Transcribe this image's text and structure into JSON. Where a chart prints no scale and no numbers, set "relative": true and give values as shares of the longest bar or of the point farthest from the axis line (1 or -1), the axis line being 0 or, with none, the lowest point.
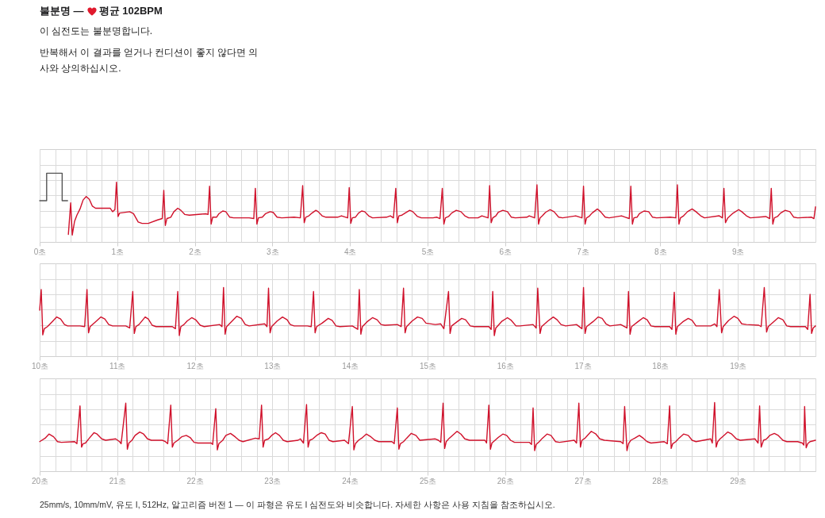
{
  "chart_data": [
    {
      "type": "line",
      "title": "불분명 — 평균 102BPM",
      "subtitle": "이 심전도는 불분명합니다.",
      "annotations": [
        "반복해서 이 결과를 얻거나 컨디션이 좋지 않다면 의사와 상의하십시오."
      ],
      "relative": true,
      "grid": true,
      "xlim": [
        0,
        10
      ],
      "xticks": [
        {
          "value": 0,
          "label": "0초"
        },
        {
          "value": 0.2,
          "label": null
        },
        {
          "value": 0.4,
          "label": null
        },
        {
          "value": 0.6,
          "label": null
        },
        {
          "value": 0.8,
          "label": null
        },
        {
          "value": 1,
          "label": "1초"
        },
        {
          "value": 1.2,
          "label": null
        },
        {
          "value": 1.4,
          "label": null
        },
        {
          "value": 1.6,
          "label": null
        },
        {
          "value": 1.8,
          "label": null
        },
        {
          "value": 2,
          "label": "2초"
        },
        {
          "value": 2.2,
          "label": null
        },
        {
          "value": 2.4,
          "label": null
        },
        {
          "value": 2.6,
          "label": null
        },
        {
          "value": 2.8,
          "label": null
        },
        {
          "value": 3,
          "label": "3초"
        },
        {
          "value": 3.2,
          "label": null
        },
        {
          "value": 3.4,
          "label": null
        },
        {
          "value": 3.6,
          "label": null
        },
        {
          "value": 3.8,
          "label": null
        },
        {
          "value": 4,
          "label": "4초"
        },
        {
          "value": 4.2,
          "label": null
        },
        {
          "value": 4.4,
          "label": null
        },
        {
          "value": 4.6,
          "label": null
        },
        {
          "value": 4.8,
          "label": null
        },
        {
          "value": 5,
          "label": "5초"
        },
        {
          "value": 5.2,
          "label": null
        },
        {
          "value": 5.4,
          "label": null
        },
        {
          "value": 5.6,
          "label": null
        },
        {
          "value": 5.8,
          "label": null
        },
        {
          "value": 6,
          "label": "6초"
        },
        {
          "value": 6.2,
          "label": null
        },
        {
          "value": 6.4,
          "label": null
        },
        {
          "value": 6.6,
          "label": null
        },
        {
          "value": 6.8,
          "label": null
        },
        {
          "value": 7,
          "label": "7초"
        },
        {
          "value": 7.2,
          "label": null
        },
        {
          "value": 7.4,
          "label": null
        },
        {
          "value": 7.6,
          "label": null
        },
        {
          "value": 7.8,
          "label": null
        },
        {
          "value": 8,
          "label": "8초"
        },
        {
          "value": 8.2,
          "label": null
        },
        {
          "value": 8.4,
          "label": null
        },
        {
          "value": 8.6,
          "label": null
        },
        {
          "value": 8.8,
          "label": null
        },
        {
          "value": 9,
          "label": "9초"
        },
        {
          "value": 9.2,
          "label": null
        },
        {
          "value": 9.4,
          "label": null
        },
        {
          "value": 9.6,
          "label": null
        },
        {
          "value": 9.8,
          "label": null
        },
        {
          "value": 10,
          "label": null
        }
      ],
      "series": [
        {
          "color": "#555555",
          "x": [
            0,
            0.09,
            0.09,
            0.29,
            0.29,
            0.36
          ],
          "values": [
            0.6,
            0.6,
            1,
            1,
            0.6,
            0.6
          ]
        },
        {
          "color": "#d0112b",
          "x": [
            0.37,
            0.4,
            0.42,
            0.45,
            0.48,
            0.52,
            0.56,
            0.6,
            0.64,
            0.68,
            0.72,
            0.91,
            0.94,
            0.97,
            0.99,
            1.01,
            1.03,
            1.16,
            1.21,
            1.27,
            1.32,
            1.4,
            1.52,
            1.58,
            1.6,
            1.62,
            1.64,
            1.69,
            1.73,
            1.78,
            1.82,
            1.87,
            1.93,
            2.14,
            2.17,
            2.19,
            2.21,
            2.23,
            2.28,
            2.31,
            2.36,
            2.4,
            2.45,
            2.5,
            2.66,
            2.7,
            2.76,
            2.78,
            2.8,
            2.82,
            2.87,
            2.91,
            2.97,
            3.01,
            3.06,
            3.12,
            3.28,
            3.36,
            3.39,
            3.41,
            3.43,
            3.47,
            3.51,
            3.56,
            3.59,
            3.64,
            3.69,
            3.84,
            3.89,
            3.97,
            3.99,
            4.01,
            4.03,
            4.07,
            4.11,
            4.15,
            4.19,
            4.24,
            4.29,
            4.47,
            4.52,
            4.56,
            4.59,
            4.61,
            4.63,
            4.67,
            4.71,
            4.77,
            4.81,
            4.87,
            4.92,
            5.07,
            5.12,
            5.16,
            5.19,
            5.21,
            5.23,
            5.27,
            5.31,
            5.37,
            5.43,
            5.48,
            5.53,
            5.65,
            5.7,
            5.78,
            5.8,
            5.82,
            5.84,
            5.88,
            5.91,
            5.97,
            6.03,
            6.08,
            6.13,
            6.28,
            6.31,
            6.38,
            6.41,
            6.43,
            6.45,
            6.48,
            6.52,
            6.58,
            6.63,
            6.69,
            6.74,
            6.91,
            6.99,
            7.01,
            7.03,
            7.05,
            7.08,
            7.12,
            7.19,
            7.23,
            7.29,
            7.34,
            7.5,
            7.55,
            7.6,
            7.62,
            7.64,
            7.66,
            7.7,
            7.73,
            7.79,
            7.85,
            7.9,
            7.95,
            8.13,
            8.2,
            8.22,
            8.24,
            8.26,
            8.3,
            8.35,
            8.41,
            8.46,
            8.52,
            8.57,
            8.76,
            8.8,
            8.82,
            8.84,
            8.87,
            8.9,
            8.94,
            9.01,
            9.05,
            9.11,
            9.16,
            9.36,
            9.41,
            9.43,
            9.45,
            9.47,
            9.51,
            9.55,
            9.61,
            9.67,
            9.72,
            9.77,
            9.95,
            9.98,
            10
          ],
          "values": [
            0.11,
            0.57,
            0.1,
            0.3,
            0.39,
            0.48,
            0.61,
            0.66,
            0.62,
            0.52,
            0.49,
            0.49,
            0.44,
            0.47,
            0.87,
            0.37,
            0.42,
            0.44,
            0.41,
            0.29,
            0.27,
            0.27,
            0.32,
            0.34,
            0.75,
            0.24,
            0.34,
            0.36,
            0.44,
            0.49,
            0.46,
            0.4,
            0.39,
            0.41,
            0.4,
            0.81,
            0.26,
            0.36,
            0.36,
            0.41,
            0.45,
            0.44,
            0.36,
            0.35,
            0.35,
            0.35,
            0.34,
            0.78,
            0.26,
            0.35,
            0.36,
            0.41,
            0.44,
            0.43,
            0.36,
            0.35,
            0.36,
            0.35,
            0.82,
            0.28,
            0.36,
            0.38,
            0.42,
            0.46,
            0.44,
            0.38,
            0.36,
            0.36,
            0.38,
            0.35,
            0.79,
            0.27,
            0.35,
            0.36,
            0.42,
            0.45,
            0.44,
            0.38,
            0.35,
            0.36,
            0.38,
            0.35,
            0.78,
            0.28,
            0.38,
            0.39,
            0.42,
            0.46,
            0.44,
            0.37,
            0.35,
            0.35,
            0.36,
            0.34,
            0.78,
            0.26,
            0.35,
            0.37,
            0.42,
            0.46,
            0.44,
            0.38,
            0.35,
            0.35,
            0.38,
            0.35,
            0.82,
            0.28,
            0.35,
            0.38,
            0.43,
            0.46,
            0.44,
            0.36,
            0.35,
            0.36,
            0.38,
            0.35,
            0.83,
            0.26,
            0.35,
            0.38,
            0.43,
            0.47,
            0.44,
            0.36,
            0.35,
            0.38,
            0.35,
            0.81,
            0.26,
            0.35,
            0.37,
            0.42,
            0.48,
            0.44,
            0.36,
            0.35,
            0.38,
            0.36,
            0.34,
            0.81,
            0.26,
            0.35,
            0.36,
            0.41,
            0.45,
            0.44,
            0.36,
            0.35,
            0.36,
            0.35,
            0.83,
            0.26,
            0.35,
            0.38,
            0.44,
            0.48,
            0.44,
            0.38,
            0.35,
            0.38,
            0.35,
            0.78,
            0.28,
            0.35,
            0.38,
            0.42,
            0.47,
            0.44,
            0.38,
            0.35,
            0.37,
            0.34,
            0.78,
            0.26,
            0.35,
            0.37,
            0.42,
            0.46,
            0.44,
            0.36,
            0.35,
            0.36,
            0.34,
            0.51
          ]
        }
      ]
    },
    {
      "type": "line",
      "relative": true,
      "grid": true,
      "xlim": [
        10,
        20
      ],
      "xticks": [
        {
          "value": 10,
          "label": "10초"
        },
        {
          "value": 10.2,
          "label": null
        },
        {
          "value": 10.4,
          "label": null
        },
        {
          "value": 10.6,
          "label": null
        },
        {
          "value": 10.8,
          "label": null
        },
        {
          "value": 11,
          "label": "11초"
        },
        {
          "value": 11.2,
          "label": null
        },
        {
          "value": 11.4,
          "label": null
        },
        {
          "value": 11.6,
          "label": null
        },
        {
          "value": 11.8,
          "label": null
        },
        {
          "value": 12,
          "label": "12초"
        },
        {
          "value": 12.2,
          "label": null
        },
        {
          "value": 12.4,
          "label": null
        },
        {
          "value": 12.6,
          "label": null
        },
        {
          "value": 12.8,
          "label": null
        },
        {
          "value": 13,
          "label": "13초"
        },
        {
          "value": 13.2,
          "label": null
        },
        {
          "value": 13.4,
          "label": null
        },
        {
          "value": 13.6,
          "label": null
        },
        {
          "value": 13.8,
          "label": null
        },
        {
          "value": 14,
          "label": "14초"
        },
        {
          "value": 14.2,
          "label": null
        },
        {
          "value": 14.4,
          "label": null
        },
        {
          "value": 14.6,
          "label": null
        },
        {
          "value": 14.8,
          "label": null
        },
        {
          "value": 15,
          "label": "15초"
        },
        {
          "value": 15.2,
          "label": null
        },
        {
          "value": 15.4,
          "label": null
        },
        {
          "value": 15.6,
          "label": null
        },
        {
          "value": 15.8,
          "label": null
        },
        {
          "value": 16,
          "label": "16초"
        },
        {
          "value": 16.2,
          "label": null
        },
        {
          "value": 16.4,
          "label": null
        },
        {
          "value": 16.6,
          "label": null
        },
        {
          "value": 16.8,
          "label": null
        },
        {
          "value": 17,
          "label": "17초"
        },
        {
          "value": 17.2,
          "label": null
        },
        {
          "value": 17.4,
          "label": null
        },
        {
          "value": 17.6,
          "label": null
        },
        {
          "value": 17.8,
          "label": null
        },
        {
          "value": 18,
          "label": "18초"
        },
        {
          "value": 18.2,
          "label": null
        },
        {
          "value": 18.4,
          "label": null
        },
        {
          "value": 18.6,
          "label": null
        },
        {
          "value": 18.8,
          "label": null
        },
        {
          "value": 19,
          "label": "19초"
        },
        {
          "value": 19.2,
          "label": null
        },
        {
          "value": 19.4,
          "label": null
        },
        {
          "value": 19.6,
          "label": null
        },
        {
          "value": 19.8,
          "label": null
        },
        {
          "value": 20,
          "label": null
        }
      ],
      "series": [
        {
          "color": "#d0112b",
          "x": [
            10,
            10.02,
            10.04,
            10.06,
            10.1,
            10.16,
            10.22,
            10.27,
            10.32,
            10.36,
            10.52,
            10.58,
            10.61,
            10.63,
            10.65,
            10.72,
            10.79,
            10.84,
            10.89,
            10.94,
            11.11,
            11.16,
            11.2,
            11.22,
            11.24,
            11.28,
            11.36,
            11.4,
            11.45,
            11.5,
            11.71,
            11.75,
            11.78,
            11.8,
            11.82,
            11.86,
            11.9,
            11.96,
            12.01,
            12.07,
            12.12,
            12.32,
            12.35,
            12.37,
            12.39,
            12.41,
            12.48,
            12.54,
            12.6,
            12.65,
            12.7,
            12.9,
            12.93,
            12.95,
            12.97,
            12.99,
            13.06,
            13.13,
            13.19,
            13.23,
            13.28,
            13.45,
            13.5,
            13.53,
            13.55,
            13.57,
            13.64,
            13.72,
            13.77,
            13.82,
            13.87,
            14.03,
            14.1,
            14.12,
            14.14,
            14.16,
            14.22,
            14.29,
            14.35,
            14.4,
            14.45,
            14.61,
            14.66,
            14.69,
            14.71,
            14.73,
            14.8,
            14.87,
            14.93,
            14.98,
            15.1,
            15.17,
            15.21,
            15.27,
            15.29,
            15.31,
            15.38,
            15.44,
            15.49,
            15.55,
            15.6,
            15.79,
            15.82,
            15.84,
            15.86,
            15.88,
            15.96,
            16.03,
            16.08,
            16.14,
            16.19,
            16.36,
            16.4,
            16.42,
            16.45,
            16.47,
            16.55,
            16.62,
            16.67,
            16.72,
            16.78,
            16.92,
            16.99,
            17.01,
            17.03,
            17.05,
            17.13,
            17.2,
            17.25,
            17.3,
            17.35,
            17.49,
            17.57,
            17.59,
            17.61,
            17.63,
            17.71,
            17.78,
            17.83,
            17.88,
            17.93,
            18.12,
            18.15,
            18.18,
            18.2,
            18.22,
            18.29,
            18.36,
            18.41,
            18.46,
            18.51,
            18.65,
            18.7,
            18.73,
            18.76,
            18.79,
            18.81,
            18.88,
            18.95,
            19.0,
            19.05,
            19.11,
            19.27,
            19.3,
            19.34,
            19.37,
            19.39,
            19.46,
            19.52,
            19.58,
            19.63,
            19.68,
            19.87,
            19.9,
            19.93,
            19.95,
            19.97,
            20
          ],
          "values": [
            0.67,
            0.97,
            0.31,
            0.4,
            0.43,
            0.5,
            0.57,
            0.54,
            0.46,
            0.44,
            0.44,
            0.43,
            0.97,
            0.34,
            0.43,
            0.5,
            0.57,
            0.54,
            0.46,
            0.44,
            0.44,
            0.41,
            0.94,
            0.33,
            0.43,
            0.46,
            0.57,
            0.54,
            0.45,
            0.43,
            0.43,
            0.4,
            0.94,
            0.3,
            0.43,
            0.46,
            0.51,
            0.56,
            0.53,
            0.45,
            0.43,
            0.46,
            0.43,
            1,
            0.32,
            0.43,
            0.51,
            0.58,
            0.55,
            0.46,
            0.44,
            0.47,
            0.43,
            0.99,
            0.34,
            0.43,
            0.51,
            0.57,
            0.53,
            0.46,
            0.44,
            0.44,
            0.43,
            0.94,
            0.34,
            0.43,
            0.48,
            0.55,
            0.52,
            0.44,
            0.43,
            0.44,
            0.39,
            0.97,
            0.32,
            0.43,
            0.5,
            0.56,
            0.53,
            0.46,
            0.45,
            0.46,
            0.43,
            0.99,
            0.34,
            0.43,
            0.51,
            0.57,
            0.55,
            0.48,
            0.46,
            0.47,
            0.4,
            0.94,
            0.33,
            0.44,
            0.5,
            0.55,
            0.53,
            0.44,
            0.43,
            0.43,
            0.39,
            0.94,
            0.3,
            0.41,
            0.51,
            0.56,
            0.52,
            0.44,
            0.44,
            0.46,
            0.41,
            0.99,
            0.33,
            0.43,
            0.51,
            0.57,
            0.53,
            0.46,
            0.44,
            0.46,
            0.4,
            1,
            0.33,
            0.43,
            0.5,
            0.57,
            0.55,
            0.47,
            0.44,
            0.46,
            0.41,
            0.94,
            0.32,
            0.43,
            0.5,
            0.56,
            0.53,
            0.44,
            0.43,
            0.43,
            0.39,
            0.93,
            0.32,
            0.43,
            0.5,
            0.55,
            0.52,
            0.44,
            0.44,
            0.44,
            0.47,
            0.43,
            0.97,
            0.34,
            0.43,
            0.52,
            0.58,
            0.55,
            0.47,
            0.46,
            0.45,
            0.43,
            1,
            0.35,
            0.43,
            0.5,
            0.56,
            0.53,
            0.44,
            0.43,
            0.43,
            0.39,
            0.9,
            0.33,
            0.41,
            0.44
          ]
        }
      ]
    },
    {
      "type": "line",
      "relative": true,
      "grid": true,
      "xlim": [
        20,
        30
      ],
      "annotations": [
        "25mm/s, 10mm/mV, 유도 I, 512Hz, 알고리즘 버전 1 — 이 파형은 유도 I 심전도와 비슷합니다. 자세한 사항은 사용 지침을 참조하십시오."
      ],
      "xticks": [
        {
          "value": 20,
          "label": "20초"
        },
        {
          "value": 20.2,
          "label": null
        },
        {
          "value": 20.4,
          "label": null
        },
        {
          "value": 20.6,
          "label": null
        },
        {
          "value": 20.8,
          "label": null
        },
        {
          "value": 21,
          "label": "21초"
        },
        {
          "value": 21.2,
          "label": null
        },
        {
          "value": 21.4,
          "label": null
        },
        {
          "value": 21.6,
          "label": null
        },
        {
          "value": 21.8,
          "label": null
        },
        {
          "value": 22,
          "label": "22초"
        },
        {
          "value": 22.2,
          "label": null
        },
        {
          "value": 22.4,
          "label": null
        },
        {
          "value": 22.6,
          "label": null
        },
        {
          "value": 22.8,
          "label": null
        },
        {
          "value": 23,
          "label": "23초"
        },
        {
          "value": 23.2,
          "label": null
        },
        {
          "value": 23.4,
          "label": null
        },
        {
          "value": 23.6,
          "label": null
        },
        {
          "value": 23.8,
          "label": null
        },
        {
          "value": 24,
          "label": "24초"
        },
        {
          "value": 24.2,
          "label": null
        },
        {
          "value": 24.4,
          "label": null
        },
        {
          "value": 24.6,
          "label": null
        },
        {
          "value": 24.8,
          "label": null
        },
        {
          "value": 25,
          "label": "25초"
        },
        {
          "value": 25.2,
          "label": null
        },
        {
          "value": 25.4,
          "label": null
        },
        {
          "value": 25.6,
          "label": null
        },
        {
          "value": 25.8,
          "label": null
        },
        {
          "value": 26,
          "label": "26초"
        },
        {
          "value": 26.2,
          "label": null
        },
        {
          "value": 26.4,
          "label": null
        },
        {
          "value": 26.6,
          "label": null
        },
        {
          "value": 26.8,
          "label": null
        },
        {
          "value": 27,
          "label": "27초"
        },
        {
          "value": 27.2,
          "label": null
        },
        {
          "value": 27.4,
          "label": null
        },
        {
          "value": 27.6,
          "label": null
        },
        {
          "value": 27.8,
          "label": null
        },
        {
          "value": 28,
          "label": "28초"
        },
        {
          "value": 28.2,
          "label": null
        },
        {
          "value": 28.4,
          "label": null
        },
        {
          "value": 28.6,
          "label": null
        },
        {
          "value": 28.8,
          "label": null
        },
        {
          "value": 29,
          "label": "29초"
        },
        {
          "value": 29.2,
          "label": null
        },
        {
          "value": 29.4,
          "label": null
        },
        {
          "value": 29.6,
          "label": null
        },
        {
          "value": 29.8,
          "label": null
        },
        {
          "value": 30,
          "label": null
        }
      ],
      "series": [
        {
          "color": "#d0112b",
          "x": [
            20,
            20.07,
            20.12,
            20.18,
            20.23,
            20.28,
            20.45,
            20.48,
            20.52,
            20.54,
            20.56,
            20.59,
            20.64,
            20.7,
            20.74,
            20.8,
            20.85,
            20.98,
            21.03,
            21.05,
            21.11,
            21.13,
            21.15,
            21.19,
            21.23,
            21.29,
            21.34,
            21.39,
            21.44,
            21.58,
            21.62,
            21.65,
            21.69,
            21.71,
            21.73,
            21.78,
            21.83,
            21.89,
            21.94,
            21.99,
            22.04,
            22.21,
            22.23,
            22.27,
            22.29,
            22.31,
            22.36,
            22.4,
            22.46,
            22.52,
            22.57,
            22.62,
            22.78,
            22.83,
            22.86,
            22.88,
            22.9,
            22.95,
            22.99,
            23.04,
            23.09,
            23.14,
            23.19,
            23.33,
            23.36,
            23.4,
            23.44,
            23.46,
            23.48,
            23.52,
            23.57,
            23.63,
            23.68,
            23.73,
            23.78,
            23.93,
            23.98,
            24.03,
            24.05,
            24.07,
            24.11,
            24.15,
            24.21,
            24.27,
            24.32,
            24.37,
            24.54,
            24.57,
            24.61,
            24.63,
            24.65,
            24.69,
            24.73,
            24.79,
            24.85,
            24.9,
            25.1,
            25.14,
            25.17,
            25.2,
            25.22,
            25.24,
            25.28,
            25.32,
            25.38,
            25.43,
            25.48,
            25.54,
            25.74,
            25.76,
            25.79,
            25.81,
            25.83,
            25.87,
            25.91,
            25.97,
            26.02,
            26.07,
            26.12,
            26.31,
            26.34,
            26.36,
            26.38,
            26.4,
            26.44,
            26.48,
            26.54,
            26.59,
            26.65,
            26.7,
            26.89,
            26.92,
            26.95,
            26.97,
            26.99,
            27.03,
            27.06,
            27.11,
            27.17,
            27.22,
            27.28,
            27.49,
            27.52,
            27.54,
            27.57,
            27.59,
            27.62,
            27.67,
            27.73,
            27.78,
            27.83,
            27.88,
            28.05,
            28.09,
            28.12,
            28.14,
            28.16,
            28.2,
            28.24,
            28.3,
            28.36,
            28.41,
            28.46,
            28.65,
            28.67,
            28.7,
            28.72,
            28.74,
            28.77,
            28.82,
            28.87,
            28.92,
            28.98,
            29.03,
            29.22,
            29.26,
            29.28,
            29.3,
            29.33,
            29.37,
            29.41,
            29.47,
            29.52,
            29.58,
            29.63,
            29.77,
            29.83,
            29.85,
            29.86,
            29.88,
            29.9,
            29.93,
            30
          ],
          "values": [
            0.43,
            0.48,
            0.54,
            0.5,
            0.43,
            0.42,
            0.43,
            0.4,
            0.95,
            0.35,
            0.4,
            0.41,
            0.48,
            0.56,
            0.54,
            0.47,
            0.45,
            0.47,
            0.43,
            0.4,
            0.99,
            0.32,
            0.41,
            0.45,
            0.52,
            0.57,
            0.54,
            0.47,
            0.45,
            0.45,
            0.43,
            0.4,
            0.96,
            0.35,
            0.41,
            0.45,
            0.5,
            0.52,
            0.49,
            0.42,
            0.41,
            0.41,
            0.39,
            0.91,
            0.31,
            0.4,
            0.45,
            0.52,
            0.55,
            0.5,
            0.45,
            0.43,
            0.48,
            0.47,
            0.96,
            0.35,
            0.45,
            0.47,
            0.52,
            0.56,
            0.52,
            0.45,
            0.43,
            0.45,
            0.47,
            0.41,
            0.97,
            0.35,
            0.45,
            0.47,
            0.52,
            0.56,
            0.54,
            0.45,
            0.43,
            0.45,
            0.4,
            0.94,
            0.31,
            0.4,
            0.45,
            0.48,
            0.54,
            0.5,
            0.45,
            0.43,
            0.43,
            0.4,
            0.92,
            0.32,
            0.4,
            0.43,
            0.48,
            0.55,
            0.52,
            0.45,
            0.47,
            0.45,
            0.42,
            0.99,
            0.33,
            0.43,
            0.48,
            0.52,
            0.58,
            0.54,
            0.47,
            0.45,
            0.45,
            0.41,
            0.96,
            0.32,
            0.41,
            0.45,
            0.49,
            0.54,
            0.52,
            0.45,
            0.42,
            0.42,
            0.39,
            0.92,
            0.3,
            0.39,
            0.43,
            0.48,
            0.54,
            0.52,
            0.43,
            0.42,
            0.45,
            0.41,
            0.99,
            0.35,
            0.45,
            0.48,
            0.52,
            0.58,
            0.54,
            0.47,
            0.45,
            0.43,
            0.4,
            0.94,
            0.3,
            0.4,
            0.45,
            0.48,
            0.52,
            0.48,
            0.43,
            0.41,
            0.43,
            0.4,
            0.95,
            0.33,
            0.4,
            0.43,
            0.48,
            0.54,
            0.52,
            0.45,
            0.43,
            0.47,
            0.41,
            1,
            0.35,
            0.43,
            0.47,
            0.52,
            0.57,
            0.54,
            0.47,
            0.45,
            0.47,
            0.41,
            0.95,
            0.35,
            0.45,
            0.47,
            0.52,
            0.55,
            0.52,
            0.45,
            0.43,
            0.43,
            0.41,
            0.38,
            0.94,
            0.34,
            0.4,
            0.43,
            0.45
          ]
        }
      ]
    }
  ]
}
